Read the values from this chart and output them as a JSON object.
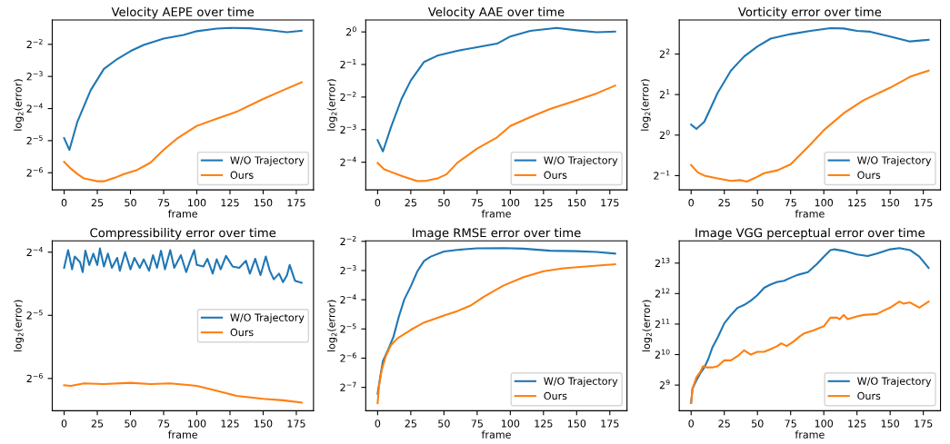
{
  "chart_data": [
    {
      "type": "line",
      "title": "Velocity AEPE over time",
      "xlabel": "frame",
      "ylabel": "log$_{2}$(error)",
      "log": true,
      "legend": "bottom right",
      "xlim": [
        -8.95,
        187.95
      ],
      "xticks": [
        0,
        25,
        50,
        75,
        100,
        125,
        150,
        175
      ],
      "ylim": [
        0.0108,
        0.423
      ],
      "yticks": [
        {
          "value": 0.015625,
          "label": "2$^{−6}$"
        },
        {
          "value": 0.03125,
          "label": "2$^{−5}$"
        },
        {
          "value": 0.0625,
          "label": "2$^{−4}$"
        },
        {
          "value": 0.125,
          "label": "2$^{−3}$"
        },
        {
          "value": 0.25,
          "label": "2$^{−2}$"
        }
      ],
      "series": [
        {
          "name": "W/O Trajectory",
          "color": "#1f77b4",
          "x": [
            0,
            4,
            10,
            20,
            30,
            40,
            50,
            60,
            75,
            90,
            100,
            115,
            125,
            140,
            155,
            168,
            179
          ],
          "values": [
            0.033,
            0.0256,
            0.047,
            0.0928,
            0.147,
            0.182,
            0.216,
            0.247,
            0.283,
            0.306,
            0.332,
            0.351,
            0.356,
            0.354,
            0.339,
            0.325,
            0.335
          ]
        },
        {
          "name": "Ours",
          "color": "#ff7f0e",
          "x": [
            0,
            5,
            10,
            15,
            20,
            25,
            30,
            38,
            45,
            55,
            65,
            75,
            85,
            100,
            115,
            130,
            150,
            165,
            179
          ],
          "values": [
            0.0198,
            0.0171,
            0.0152,
            0.0138,
            0.0134,
            0.013,
            0.013,
            0.014,
            0.0152,
            0.0166,
            0.0194,
            0.0256,
            0.0326,
            0.043,
            0.0501,
            0.0583,
            0.0769,
            0.0928,
            0.11
          ]
        }
      ]
    },
    {
      "type": "line",
      "title": "Velocity AAE over time",
      "xlabel": "frame",
      "ylabel": "log$_{2}$(error)",
      "log": true,
      "legend": "bottom right",
      "xlim": [
        -8.95,
        187.95
      ],
      "xticks": [
        0,
        25,
        50,
        75,
        100,
        125,
        150,
        175
      ],
      "ylim": [
        0.0347,
        1.289
      ],
      "yticks": [
        {
          "value": 0.0625,
          "label": "2$^{−4}$"
        },
        {
          "value": 0.125,
          "label": "2$^{−3}$"
        },
        {
          "value": 0.25,
          "label": "2$^{−2}$"
        },
        {
          "value": 0.5,
          "label": "2$^{−1}$"
        },
        {
          "value": 1,
          "label": "2$^{0}$"
        }
      ],
      "series": [
        {
          "name": "W/O Trajectory",
          "color": "#1f77b4",
          "x": [
            0,
            4,
            10,
            18,
            25,
            35,
            45,
            60,
            75,
            90,
            100,
            115,
            135,
            150,
            165,
            179
          ],
          "values": [
            0.1,
            0.0786,
            0.131,
            0.24,
            0.356,
            0.528,
            0.603,
            0.669,
            0.722,
            0.779,
            0.908,
            1.021,
            1.087,
            1.035,
            0.993,
            1.007
          ]
        },
        {
          "name": "Ours",
          "color": "#ff7f0e",
          "x": [
            0,
            5,
            10,
            20,
            30,
            37,
            45,
            52,
            60,
            75,
            90,
            100,
            115,
            130,
            150,
            165,
            179
          ],
          "values": [
            0.0616,
            0.0536,
            0.0508,
            0.0458,
            0.0418,
            0.0421,
            0.0442,
            0.0484,
            0.0616,
            0.0836,
            0.106,
            0.135,
            0.163,
            0.194,
            0.233,
            0.27,
            0.319
          ]
        }
      ]
    },
    {
      "type": "line",
      "title": "Vorticity error over time",
      "xlabel": "frame",
      "ylabel": "log$_{2}$(error)",
      "log": true,
      "legend": "bottom right",
      "xlim": [
        -8.95,
        187.95
      ],
      "xticks": [
        0,
        25,
        50,
        75,
        100,
        125,
        150,
        175
      ],
      "ylim": [
        0.392,
        7.16
      ],
      "yticks": [
        {
          "value": 0.5,
          "label": "2$^{−1}$"
        },
        {
          "value": 1,
          "label": "2$^{0}$"
        },
        {
          "value": 2,
          "label": "2$^{1}$"
        },
        {
          "value": 4,
          "label": "2$^{2}$"
        }
      ],
      "series": [
        {
          "name": "W/O Trajectory",
          "color": "#1f77b4",
          "x": [
            0,
            4,
            10,
            20,
            30,
            40,
            50,
            60,
            75,
            90,
            105,
            115,
            125,
            135,
            150,
            165,
            179
          ],
          "values": [
            1.197,
            1.11,
            1.257,
            2.06,
            3.01,
            3.84,
            4.56,
            5.21,
            5.62,
            5.94,
            6.23,
            6.19,
            5.94,
            5.86,
            5.39,
            4.96,
            5.1
          ]
        },
        {
          "name": "Ours",
          "color": "#ff7f0e",
          "x": [
            0,
            5,
            10,
            20,
            30,
            37,
            42,
            48,
            55,
            65,
            75,
            90,
            100,
            115,
            130,
            150,
            165,
            179
          ],
          "values": [
            0.599,
            0.528,
            0.5,
            0.476,
            0.457,
            0.463,
            0.451,
            0.48,
            0.521,
            0.547,
            0.607,
            0.853,
            1.087,
            1.454,
            1.815,
            2.25,
            2.71,
            3.01
          ]
        }
      ]
    },
    {
      "type": "line",
      "title": "Compressibility error over time",
      "xlabel": "frame",
      "ylabel": "log$_{2}$(error)",
      "log": true,
      "legend": "right",
      "xlim": [
        -8.95,
        187.95
      ],
      "xticks": [
        0,
        25,
        50,
        75,
        100,
        125,
        150,
        175
      ],
      "ylim": [
        0.01097,
        0.0708
      ],
      "yticks": [
        {
          "value": 0.015625,
          "label": "2$^{−6}$"
        },
        {
          "value": 0.03125,
          "label": "2$^{−5}$"
        },
        {
          "value": 0.0625,
          "label": "2$^{−4}$"
        }
      ],
      "series": [
        {
          "name": "W/O Trajectory",
          "color": "#1f77b4",
          "x": [
            0,
            3,
            6,
            8,
            12,
            14,
            16,
            19,
            22,
            25,
            27,
            30,
            33,
            36,
            40,
            42,
            46,
            50,
            53,
            57,
            60,
            64,
            67,
            70,
            73,
            76,
            80,
            83,
            88,
            92,
            95,
            98,
            100,
            105,
            108,
            112,
            115,
            118,
            122,
            127,
            132,
            137,
            140,
            144,
            148,
            152,
            155,
            158,
            162,
            165,
            168,
            170,
            174,
            179
          ],
          "values": [
            0.0526,
            0.0639,
            0.0518,
            0.0596,
            0.056,
            0.0502,
            0.0635,
            0.0543,
            0.0615,
            0.0543,
            0.0651,
            0.0534,
            0.0615,
            0.0526,
            0.0587,
            0.051,
            0.0625,
            0.0518,
            0.0587,
            0.0526,
            0.0578,
            0.051,
            0.0605,
            0.0526,
            0.0635,
            0.0518,
            0.0639,
            0.0526,
            0.0605,
            0.0502,
            0.0569,
            0.0639,
            0.0543,
            0.0534,
            0.0581,
            0.0494,
            0.0578,
            0.0518,
            0.06,
            0.0534,
            0.0526,
            0.0569,
            0.0494,
            0.0581,
            0.0486,
            0.0596,
            0.051,
            0.0464,
            0.0494,
            0.045,
            0.0486,
            0.0543,
            0.0457,
            0.0447
          ]
        },
        {
          "name": "Ours",
          "color": "#ff7f0e",
          "x": [
            0,
            5,
            15,
            30,
            50,
            65,
            80,
            95,
            100,
            110,
            120,
            130,
            150,
            165,
            179
          ],
          "values": [
            0.0145,
            0.0144,
            0.0148,
            0.0147,
            0.0149,
            0.0147,
            0.0148,
            0.0145,
            0.0144,
            0.0139,
            0.0134,
            0.0129,
            0.0125,
            0.0123,
            0.012
          ]
        }
      ]
    },
    {
      "type": "line",
      "title": "Image RMSE error over time",
      "xlabel": "frame",
      "ylabel": "log$_{2}$(error)",
      "log": true,
      "legend": "bottom right",
      "xlim": [
        -8.95,
        187.95
      ],
      "xticks": [
        0,
        25,
        50,
        75,
        100,
        125,
        150,
        175
      ],
      "ylim": [
        0.00449,
        0.253
      ],
      "yticks": [
        {
          "value": 0.0078125,
          "label": "2$^{−7}$"
        },
        {
          "value": 0.015625,
          "label": "2$^{−6}$"
        },
        {
          "value": 0.03125,
          "label": "2$^{−5}$"
        },
        {
          "value": 0.0625,
          "label": "2$^{−4}$"
        },
        {
          "value": 0.125,
          "label": "2$^{−3}$"
        },
        {
          "value": 0.25,
          "label": "2$^{−2}$"
        }
      ],
      "series": [
        {
          "name": "W/O Trajectory",
          "color": "#1f77b4",
          "x": [
            0,
            2,
            4,
            8,
            12,
            16,
            20,
            25,
            30,
            35,
            40,
            50,
            60,
            75,
            95,
            110,
            130,
            150,
            165,
            179
          ],
          "values": [
            0.00671,
            0.0101,
            0.0146,
            0.0192,
            0.0261,
            0.0418,
            0.0625,
            0.0859,
            0.123,
            0.157,
            0.174,
            0.196,
            0.204,
            0.212,
            0.213,
            0.21,
            0.2,
            0.198,
            0.194,
            0.187
          ]
        },
        {
          "name": "Ours",
          "color": "#ff7f0e",
          "x": [
            0,
            1,
            3,
            6,
            10,
            15,
            25,
            35,
            50,
            60,
            70,
            80,
            95,
            110,
            125,
            140,
            155,
            170,
            179
          ],
          "values": [
            0.00537,
            0.00798,
            0.0116,
            0.0162,
            0.0212,
            0.025,
            0.0306,
            0.0364,
            0.043,
            0.0477,
            0.0544,
            0.067,
            0.0878,
            0.107,
            0.123,
            0.132,
            0.137,
            0.142,
            0.145
          ]
        }
      ]
    },
    {
      "type": "line",
      "title": "Image VGG perceptual error over time",
      "xlabel": "frame",
      "ylabel": "log$_{2}$(error)",
      "log": true,
      "legend": "bottom right",
      "xlim": [
        -8.95,
        187.95
      ],
      "xticks": [
        0,
        25,
        50,
        75,
        100,
        125,
        150,
        175
      ],
      "ylim": [
        286,
        13590
      ],
      "yticks": [
        {
          "value": 512,
          "label": "2$^{9}$"
        },
        {
          "value": 1024,
          "label": "2$^{10}$"
        },
        {
          "value": 2048,
          "label": "2$^{11}$"
        },
        {
          "value": 4096,
          "label": "2$^{12}$"
        },
        {
          "value": 8192,
          "label": "2$^{13}$"
        }
      ],
      "series": [
        {
          "name": "W/O Trajectory",
          "color": "#1f77b4",
          "x": [
            0,
            1,
            4,
            7,
            10,
            13,
            16,
            20,
            25,
            30,
            35,
            40,
            45,
            50,
            55,
            60,
            65,
            70,
            75,
            80,
            88,
            95,
            100,
            105,
            108,
            115,
            125,
            133,
            140,
            150,
            157,
            165,
            172,
            179
          ],
          "values": [
            340,
            471,
            572,
            671,
            765,
            929,
            1200,
            1510,
            2080,
            2520,
            2960,
            3170,
            3490,
            3960,
            4670,
            5040,
            5330,
            5480,
            5870,
            6250,
            6660,
            8080,
            9480,
            11000,
            11200,
            10800,
            9950,
            9610,
            10200,
            11200,
            11500,
            11000,
            9480,
            7330
          ]
        },
        {
          "name": "Ours",
          "color": "#ff7f0e",
          "x": [
            0,
            1,
            4,
            7,
            9,
            12,
            16,
            20,
            25,
            30,
            35,
            40,
            45,
            50,
            55,
            60,
            65,
            68,
            72,
            77,
            82,
            85,
            92,
            100,
            105,
            110,
            112,
            115,
            118,
            125,
            130,
            140,
            145,
            150,
            157,
            160,
            165,
            172,
            179
          ],
          "values": [
            340,
            471,
            609,
            695,
            787,
            765,
            765,
            787,
            898,
            898,
            989,
            1128,
            1024,
            1090,
            1090,
            1160,
            1243,
            1323,
            1243,
            1370,
            1552,
            1652,
            1770,
            1951,
            2370,
            2370,
            2288,
            2521,
            2288,
            2436,
            2521,
            2575,
            2779,
            2978,
            3420,
            3258,
            3350,
            2978,
            3420
          ]
        }
      ]
    }
  ]
}
